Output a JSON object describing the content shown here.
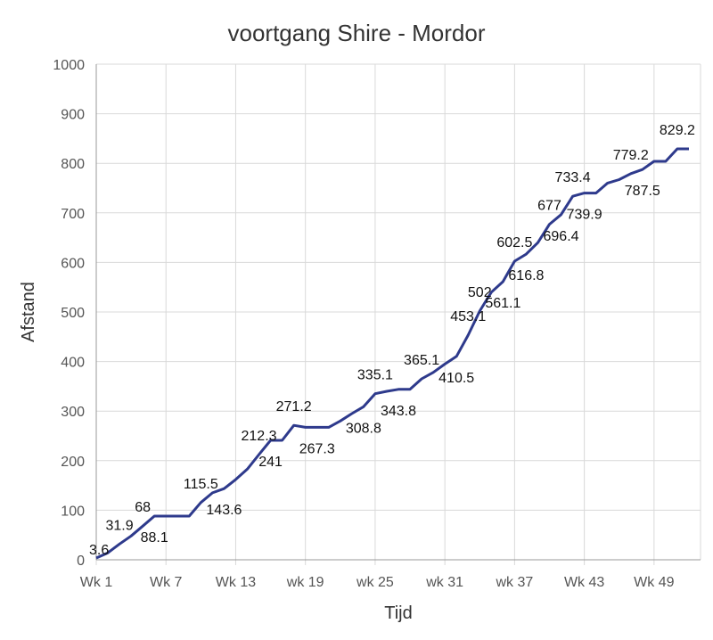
{
  "chart_data": {
    "type": "line",
    "title": "voortgang Shire - Mordor",
    "xlabel": "Tijd",
    "ylabel": "Afstand",
    "ylim": [
      0,
      1000
    ],
    "yticks": [
      0,
      100,
      200,
      300,
      400,
      500,
      600,
      700,
      800,
      900,
      1000
    ],
    "xlim": [
      1,
      53
    ],
    "xticks": [
      {
        "x": 1,
        "label": "Wk 1"
      },
      {
        "x": 7,
        "label": "Wk 7"
      },
      {
        "x": 13,
        "label": "Wk 13"
      },
      {
        "x": 19,
        "label": "wk 19"
      },
      {
        "x": 25,
        "label": "wk 25"
      },
      {
        "x": 31,
        "label": "wk 31"
      },
      {
        "x": 37,
        "label": "wk 37"
      },
      {
        "x": 43,
        "label": "Wk 43"
      },
      {
        "x": 49,
        "label": "Wk 49"
      }
    ],
    "grid": true,
    "color": "#2e3a8c",
    "x": [
      1,
      2,
      3,
      4,
      5,
      6,
      7,
      8,
      9,
      10,
      11,
      12,
      13,
      14,
      15,
      16,
      17,
      18,
      19,
      20,
      21,
      22,
      23,
      24,
      25,
      26,
      27,
      28,
      29,
      30,
      31,
      32,
      33,
      34,
      35,
      36,
      37,
      38,
      39,
      40,
      41,
      42,
      43,
      44,
      45,
      46,
      47,
      48,
      49,
      50,
      51,
      52
    ],
    "y": [
      3.6,
      14,
      31.9,
      48,
      68,
      88.1,
      88.1,
      88.1,
      88.1,
      115.5,
      135,
      143.6,
      162,
      183,
      212.3,
      241,
      241,
      271.2,
      267.3,
      267.3,
      267.3,
      280,
      295,
      308.8,
      335.1,
      340,
      343.8,
      343.8,
      365.1,
      378,
      395,
      410.5,
      453.1,
      502,
      540,
      561.1,
      602.5,
      616.8,
      640,
      677,
      696.4,
      733.4,
      739.9,
      739.9,
      760,
      767,
      779.2,
      787.5,
      804,
      804,
      829.2,
      829.2
    ],
    "data_labels": [
      {
        "text": "3.6",
        "x": 1,
        "y": 3.6,
        "pos": "right"
      },
      {
        "text": "31.9",
        "x": 3,
        "y": 31.9,
        "pos": "above"
      },
      {
        "text": "68",
        "x": 5,
        "y": 68,
        "pos": "above"
      },
      {
        "text": "88.1",
        "x": 6,
        "y": 88.1,
        "pos": "below"
      },
      {
        "text": "115.5",
        "x": 10,
        "y": 115.5,
        "pos": "above"
      },
      {
        "text": "143.6",
        "x": 12,
        "y": 143.6,
        "pos": "below"
      },
      {
        "text": "212.3",
        "x": 15,
        "y": 212.3,
        "pos": "above"
      },
      {
        "text": "241",
        "x": 16,
        "y": 241,
        "pos": "below"
      },
      {
        "text": "271.2",
        "x": 18,
        "y": 271.2,
        "pos": "above"
      },
      {
        "text": "267.3",
        "x": 20,
        "y": 267.3,
        "pos": "below"
      },
      {
        "text": "308.8",
        "x": 24,
        "y": 308.8,
        "pos": "below"
      },
      {
        "text": "335.1",
        "x": 25,
        "y": 335.1,
        "pos": "above"
      },
      {
        "text": "343.8",
        "x": 27,
        "y": 343.8,
        "pos": "below"
      },
      {
        "text": "365.1",
        "x": 29,
        "y": 365.1,
        "pos": "above"
      },
      {
        "text": "410.5",
        "x": 32,
        "y": 410.5,
        "pos": "below"
      },
      {
        "text": "453.1",
        "x": 33,
        "y": 453.1,
        "pos": "above"
      },
      {
        "text": "502",
        "x": 34,
        "y": 502,
        "pos": "above"
      },
      {
        "text": "561.1",
        "x": 36,
        "y": 561.1,
        "pos": "below"
      },
      {
        "text": "602.5",
        "x": 37,
        "y": 602.5,
        "pos": "above"
      },
      {
        "text": "616.8",
        "x": 38,
        "y": 616.8,
        "pos": "below"
      },
      {
        "text": "677",
        "x": 40,
        "y": 677,
        "pos": "above"
      },
      {
        "text": "696.4",
        "x": 41,
        "y": 696.4,
        "pos": "below"
      },
      {
        "text": "733.4",
        "x": 42,
        "y": 733.4,
        "pos": "above"
      },
      {
        "text": "739.9",
        "x": 43,
        "y": 739.9,
        "pos": "below"
      },
      {
        "text": "779.2",
        "x": 47,
        "y": 779.2,
        "pos": "above"
      },
      {
        "text": "787.5",
        "x": 48,
        "y": 787.5,
        "pos": "below"
      },
      {
        "text": "829.2",
        "x": 51,
        "y": 829.2,
        "pos": "above"
      }
    ]
  }
}
